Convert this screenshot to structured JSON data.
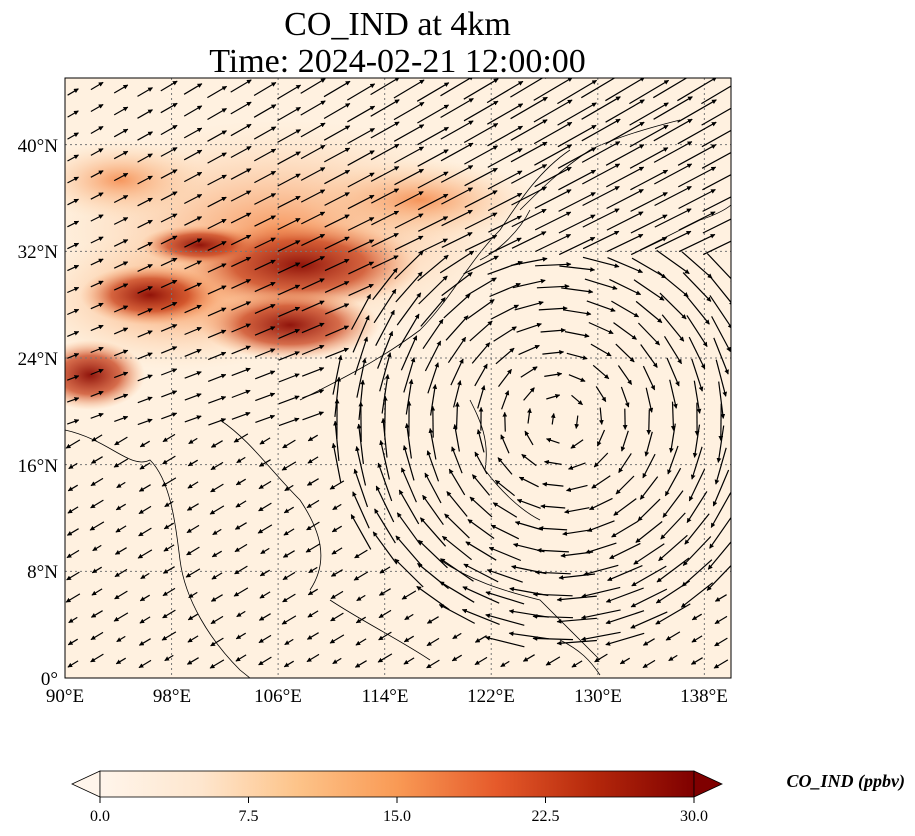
{
  "title": {
    "line1": "CO_IND at 4km",
    "line2": "Time: 2024-02-21 12:00:00"
  },
  "map": {
    "lon_range": [
      90,
      140
    ],
    "lat_range": [
      0,
      45
    ],
    "lon_ticks": [
      {
        "value": 90,
        "label": "90°E"
      },
      {
        "value": 98,
        "label": "98°E"
      },
      {
        "value": 106,
        "label": "106°E"
      },
      {
        "value": 114,
        "label": "114°E"
      },
      {
        "value": 122,
        "label": "122°E"
      },
      {
        "value": 130,
        "label": "130°E"
      },
      {
        "value": 138,
        "label": "138°E"
      }
    ],
    "lat_ticks": [
      {
        "value": 0,
        "label": "0°"
      },
      {
        "value": 8,
        "label": "8°N"
      },
      {
        "value": 16,
        "label": "16°N"
      },
      {
        "value": 24,
        "label": "24°N"
      },
      {
        "value": 32,
        "label": "32°N"
      },
      {
        "value": 40,
        "label": "40°N"
      }
    ],
    "gridlines": true
  },
  "colorbar": {
    "title": "CO_IND (ppbv)",
    "min": 0.0,
    "max": 30.0,
    "ticks": [
      {
        "value": 0.0,
        "label": "0.0"
      },
      {
        "value": 7.5,
        "label": "7.5"
      },
      {
        "value": 15.0,
        "label": "15.0"
      },
      {
        "value": 22.5,
        "label": "22.5"
      },
      {
        "value": 30.0,
        "label": "30.0"
      }
    ],
    "colormap": [
      "#fff5eb",
      "#fdd9b0",
      "#fdb06b",
      "#f4773a",
      "#d94a1a",
      "#a12b08",
      "#7f0000"
    ]
  }
}
